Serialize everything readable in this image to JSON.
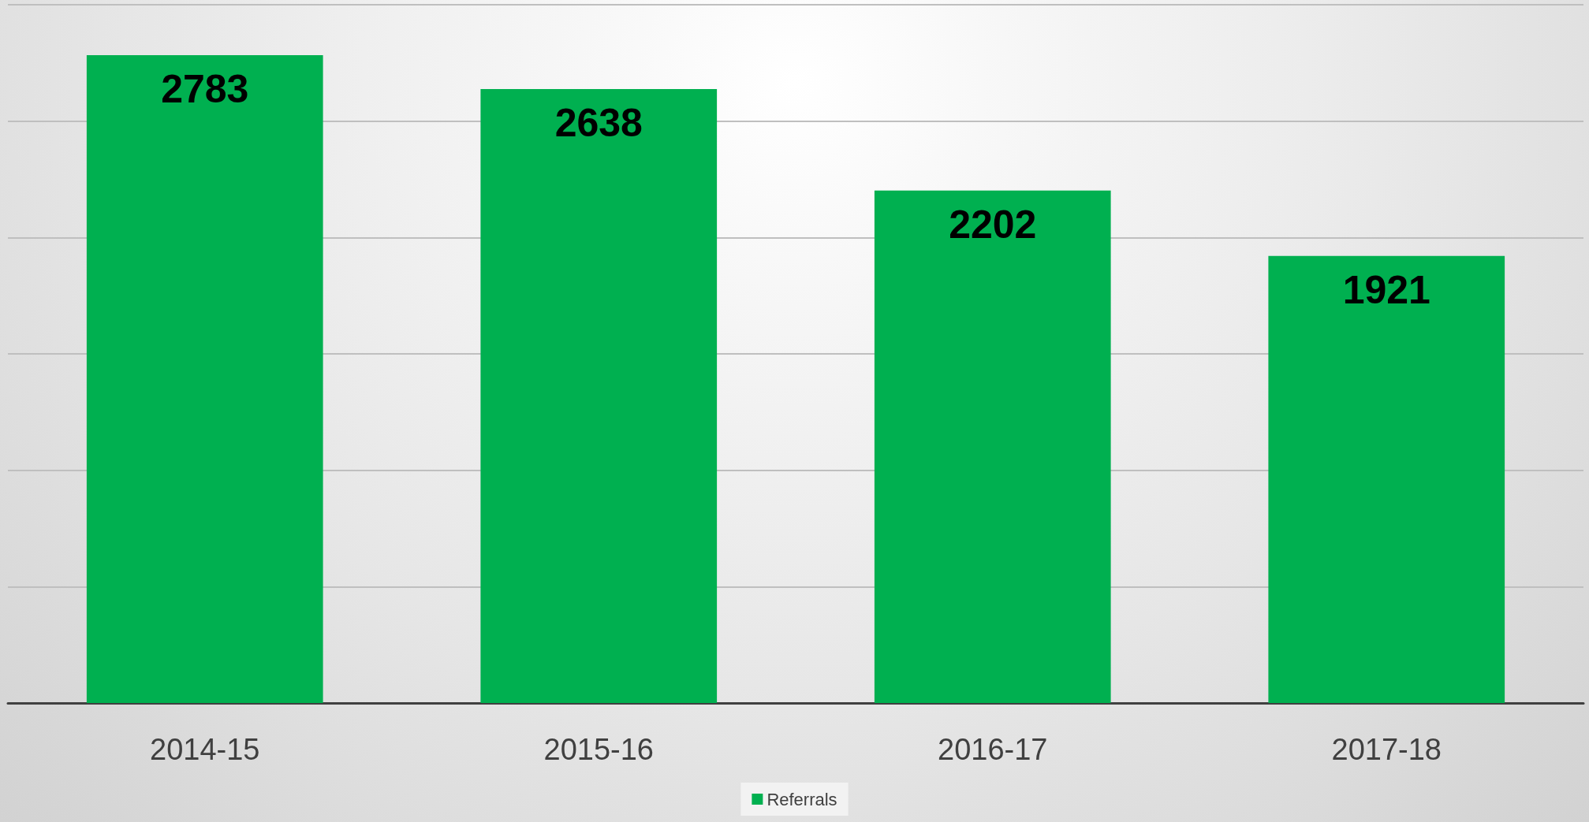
{
  "chart_data": {
    "type": "bar",
    "categories": [
      "2014-15",
      "2015-16",
      "2016-17",
      "2017-18"
    ],
    "series": [
      {
        "name": "Referrals",
        "color": "#00b050",
        "values": [
          2783,
          2638,
          2202,
          1921
        ]
      }
    ],
    "ylim": [
      0,
      3000
    ],
    "yticks": [
      {
        "value": 0,
        "label": null
      },
      {
        "value": 500,
        "label": null
      },
      {
        "value": 1000,
        "label": null
      },
      {
        "value": 1500,
        "label": null
      },
      {
        "value": 2000,
        "label": null
      },
      {
        "value": 2500,
        "label": null
      },
      {
        "value": 3000,
        "label": null
      }
    ],
    "tick_labels": "x",
    "grid": "y",
    "legend": "bottom",
    "data_labels": true
  }
}
